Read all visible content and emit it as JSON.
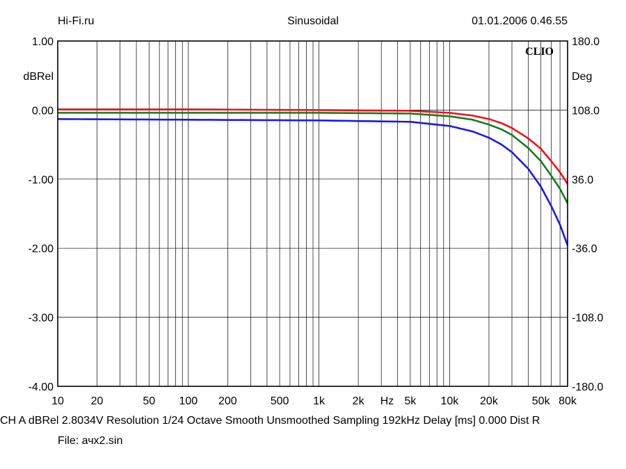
{
  "header": {
    "left": "Hi-Fi.ru",
    "center": "Sinusoidal",
    "right": "01.01.2006 0.46.55"
  },
  "brand": "CLIO",
  "footer": {
    "line1": "CH A   dBRel 2.8034V  Resolution 1/24 Octave   Smooth Unsmoothed    Sampling 192kHz    Delay [ms] 0.000     Dist R",
    "file": "File: ачх2.sin"
  },
  "colors": {
    "background": "#ffffff",
    "grid": "#000000",
    "red": "#e8141a",
    "green": "#157a1e",
    "blue": "#1a1ae0"
  },
  "chart_data": {
    "type": "line",
    "xscale": "log",
    "xlim": [
      10,
      80000
    ],
    "ylim": [
      -4,
      1
    ],
    "y2lim": [
      -180,
      180
    ],
    "grid": true,
    "ylabel": "dBRel",
    "y2label": "Deg",
    "xunit": "Hz",
    "x_ticks": [
      {
        "v": 10,
        "label": "10"
      },
      {
        "v": 20,
        "label": "20"
      },
      {
        "v": 50,
        "label": "50"
      },
      {
        "v": 100,
        "label": "100"
      },
      {
        "v": 200,
        "label": "200"
      },
      {
        "v": 500,
        "label": "500"
      },
      {
        "v": 1000,
        "label": "1k"
      },
      {
        "v": 2000,
        "label": "2k"
      },
      {
        "v": 5000,
        "label": "5k"
      },
      {
        "v": 10000,
        "label": "10k"
      },
      {
        "v": 20000,
        "label": "20k"
      },
      {
        "v": 50000,
        "label": "50k"
      },
      {
        "v": 80000,
        "label": "80k"
      }
    ],
    "y_ticks": [
      {
        "v": 1,
        "label": "1.00"
      },
      {
        "v": 0,
        "label": "0.00"
      },
      {
        "v": -1,
        "label": "-1.00"
      },
      {
        "v": -2,
        "label": "-2.00"
      },
      {
        "v": -3,
        "label": "-3.00"
      },
      {
        "v": -4,
        "label": "-4.00"
      }
    ],
    "y2_ticks": [
      {
        "v": 180,
        "label": "180.0"
      },
      {
        "v": 108,
        "label": "108.0"
      },
      {
        "v": 36,
        "label": "36.0"
      },
      {
        "v": -36,
        "label": "-36.0"
      },
      {
        "v": -108,
        "label": "-108.0"
      },
      {
        "v": -180,
        "label": "-180.0"
      }
    ],
    "series": [
      {
        "color": "#e8141a",
        "x": [
          10,
          100,
          1000,
          5000,
          10000,
          15000,
          20000,
          25000,
          30000,
          40000,
          50000,
          60000,
          70000,
          80000
        ],
        "y": [
          0.01,
          0.01,
          0.0,
          -0.01,
          -0.04,
          -0.08,
          -0.13,
          -0.19,
          -0.26,
          -0.41,
          -0.56,
          -0.74,
          -0.9,
          -1.07
        ]
      },
      {
        "color": "#157a1e",
        "x": [
          10,
          100,
          1000,
          5000,
          10000,
          15000,
          20000,
          25000,
          30000,
          40000,
          50000,
          60000,
          70000,
          80000
        ],
        "y": [
          -0.04,
          -0.04,
          -0.04,
          -0.05,
          -0.09,
          -0.14,
          -0.21,
          -0.28,
          -0.36,
          -0.55,
          -0.74,
          -0.95,
          -1.14,
          -1.35
        ]
      },
      {
        "color": "#1a1ae0",
        "x": [
          10,
          100,
          1000,
          5000,
          10000,
          15000,
          20000,
          25000,
          30000,
          40000,
          50000,
          60000,
          70000,
          80000
        ],
        "y": [
          -0.13,
          -0.14,
          -0.15,
          -0.17,
          -0.23,
          -0.31,
          -0.4,
          -0.5,
          -0.61,
          -0.85,
          -1.11,
          -1.39,
          -1.66,
          -1.96
        ]
      }
    ]
  }
}
